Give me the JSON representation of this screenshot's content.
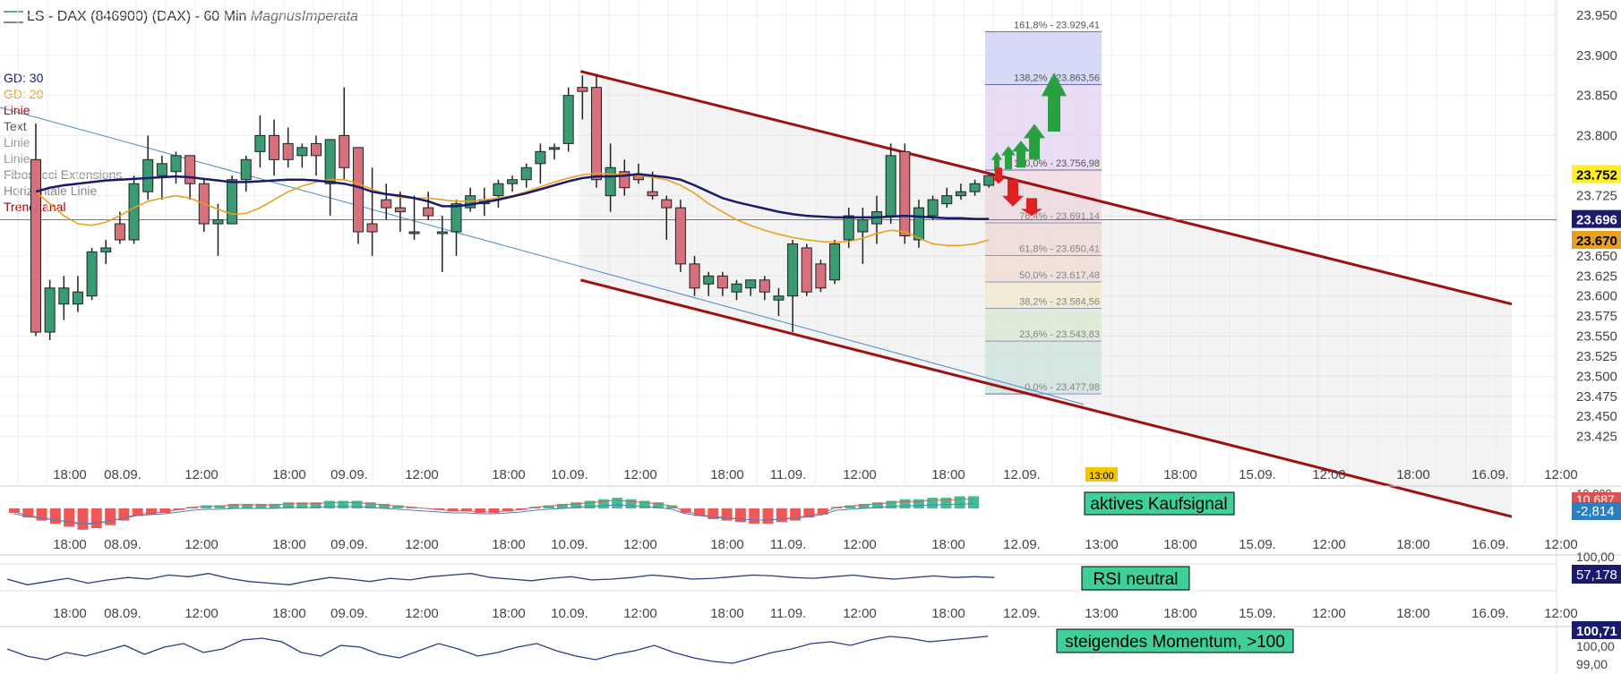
{
  "header": {
    "title": "LS - DAX (846900) (DAX) - 60 Min",
    "brand": "MagnusImperata"
  },
  "legend": [
    {
      "label": "GD: 30",
      "color": "#1a1a6e"
    },
    {
      "label": "GD: 20",
      "color": "#e8a020"
    },
    {
      "label": "Linie",
      "color": "#b00000"
    },
    {
      "label": "Text",
      "color": "#555555"
    },
    {
      "label": "Linie",
      "color": "#999999"
    },
    {
      "label": "Linie",
      "color": "#999999"
    },
    {
      "label": "Fibonacci Extensions",
      "color": "#888888"
    },
    {
      "label": "Horizontale Linie",
      "color": "#888888"
    },
    {
      "label": "Trendkanal",
      "color": "#b00000"
    }
  ],
  "chart_data": [
    {
      "type": "candlestick",
      "title": "LS - DAX (846900) (DAX) - 60 Min",
      "y_range": [
        23400,
        23960
      ],
      "y_ticks": [
        "23.950",
        "23.900",
        "23.850",
        "23.800",
        "23.750",
        "23.725",
        "23.700",
        "23.650",
        "23.625",
        "23.600",
        "23.575",
        "23.550",
        "23.525",
        "23.500",
        "23.475",
        "23.450",
        "23.425"
      ],
      "x_ticks": [
        "18:00",
        "08.09.",
        "12:00",
        "18:00",
        "09.09.",
        "12:00",
        "18:00",
        "10.09.",
        "12:00",
        "18:00",
        "11.09.",
        "12:00",
        "18:00",
        "12.09.",
        "13:00",
        "18:00",
        "15.09.",
        "12:00",
        "18:00",
        "16.09.",
        "12:00"
      ],
      "candles": [
        {
          "o": 23770,
          "h": 23815,
          "l": 23550,
          "c": 23555
        },
        {
          "o": 23555,
          "h": 23620,
          "l": 23545,
          "c": 23610
        },
        {
          "o": 23590,
          "h": 23625,
          "l": 23570,
          "c": 23610
        },
        {
          "o": 23590,
          "h": 23625,
          "l": 23580,
          "c": 23605
        },
        {
          "o": 23600,
          "h": 23660,
          "l": 23595,
          "c": 23655
        },
        {
          "o": 23655,
          "h": 23670,
          "l": 23640,
          "c": 23660
        },
        {
          "o": 23690,
          "h": 23705,
          "l": 23665,
          "c": 23670
        },
        {
          "o": 23670,
          "h": 23750,
          "l": 23665,
          "c": 23740
        },
        {
          "o": 23730,
          "h": 23800,
          "l": 23720,
          "c": 23770
        },
        {
          "o": 23750,
          "h": 23775,
          "l": 23720,
          "c": 23765
        },
        {
          "o": 23755,
          "h": 23780,
          "l": 23740,
          "c": 23775
        },
        {
          "o": 23775,
          "h": 23775,
          "l": 23720,
          "c": 23740
        },
        {
          "o": 23740,
          "h": 23745,
          "l": 23680,
          "c": 23690
        },
        {
          "o": 23690,
          "h": 23715,
          "l": 23650,
          "c": 23695
        },
        {
          "o": 23690,
          "h": 23750,
          "l": 23690,
          "c": 23745
        },
        {
          "o": 23745,
          "h": 23775,
          "l": 23730,
          "c": 23770
        },
        {
          "o": 23780,
          "h": 23825,
          "l": 23760,
          "c": 23800
        },
        {
          "o": 23800,
          "h": 23820,
          "l": 23750,
          "c": 23770
        },
        {
          "o": 23790,
          "h": 23810,
          "l": 23760,
          "c": 23770
        },
        {
          "o": 23775,
          "h": 23790,
          "l": 23760,
          "c": 23785
        },
        {
          "o": 23790,
          "h": 23800,
          "l": 23750,
          "c": 23775
        },
        {
          "o": 23740,
          "h": 23795,
          "l": 23700,
          "c": 23795
        },
        {
          "o": 23800,
          "h": 23860,
          "l": 23745,
          "c": 23760
        },
        {
          "o": 23785,
          "h": 23785,
          "l": 23665,
          "c": 23680
        },
        {
          "o": 23690,
          "h": 23760,
          "l": 23650,
          "c": 23680
        },
        {
          "o": 23720,
          "h": 23740,
          "l": 23695,
          "c": 23710
        },
        {
          "o": 23710,
          "h": 23730,
          "l": 23680,
          "c": 23705
        },
        {
          "o": 23680,
          "h": 23725,
          "l": 23670,
          "c": 23680
        },
        {
          "o": 23710,
          "h": 23730,
          "l": 23695,
          "c": 23700
        },
        {
          "o": 23680,
          "h": 23700,
          "l": 23630,
          "c": 23680
        },
        {
          "o": 23680,
          "h": 23720,
          "l": 23650,
          "c": 23715
        },
        {
          "o": 23710,
          "h": 23735,
          "l": 23705,
          "c": 23725
        },
        {
          "o": 23715,
          "h": 23735,
          "l": 23700,
          "c": 23720
        },
        {
          "o": 23725,
          "h": 23745,
          "l": 23710,
          "c": 23740
        },
        {
          "o": 23740,
          "h": 23750,
          "l": 23730,
          "c": 23745
        },
        {
          "o": 23745,
          "h": 23765,
          "l": 23735,
          "c": 23760
        },
        {
          "o": 23765,
          "h": 23790,
          "l": 23740,
          "c": 23780
        },
        {
          "o": 23785,
          "h": 23790,
          "l": 23770,
          "c": 23785
        },
        {
          "o": 23790,
          "h": 23860,
          "l": 23780,
          "c": 23850
        },
        {
          "o": 23860,
          "h": 23875,
          "l": 23820,
          "c": 23855
        },
        {
          "o": 23860,
          "h": 23875,
          "l": 23735,
          "c": 23745
        },
        {
          "o": 23725,
          "h": 23790,
          "l": 23705,
          "c": 23760
        },
        {
          "o": 23755,
          "h": 23770,
          "l": 23725,
          "c": 23735
        },
        {
          "o": 23750,
          "h": 23765,
          "l": 23740,
          "c": 23745
        },
        {
          "o": 23730,
          "h": 23755,
          "l": 23720,
          "c": 23725
        },
        {
          "o": 23720,
          "h": 23725,
          "l": 23670,
          "c": 23710
        },
        {
          "o": 23710,
          "h": 23720,
          "l": 23630,
          "c": 23640
        },
        {
          "o": 23640,
          "h": 23650,
          "l": 23600,
          "c": 23610
        },
        {
          "o": 23615,
          "h": 23630,
          "l": 23600,
          "c": 23625
        },
        {
          "o": 23625,
          "h": 23630,
          "l": 23600,
          "c": 23610
        },
        {
          "o": 23605,
          "h": 23620,
          "l": 23595,
          "c": 23615
        },
        {
          "o": 23610,
          "h": 23620,
          "l": 23600,
          "c": 23620
        },
        {
          "o": 23620,
          "h": 23625,
          "l": 23595,
          "c": 23605
        },
        {
          "o": 23595,
          "h": 23610,
          "l": 23575,
          "c": 23600
        },
        {
          "o": 23600,
          "h": 23670,
          "l": 23555,
          "c": 23665
        },
        {
          "o": 23660,
          "h": 23665,
          "l": 23600,
          "c": 23605
        },
        {
          "o": 23640,
          "h": 23645,
          "l": 23605,
          "c": 23610
        },
        {
          "o": 23620,
          "h": 23670,
          "l": 23615,
          "c": 23665
        },
        {
          "o": 23670,
          "h": 23710,
          "l": 23660,
          "c": 23700
        },
        {
          "o": 23680,
          "h": 23710,
          "l": 23640,
          "c": 23695
        },
        {
          "o": 23690,
          "h": 23725,
          "l": 23665,
          "c": 23705
        },
        {
          "o": 23700,
          "h": 23790,
          "l": 23690,
          "c": 23775
        },
        {
          "o": 23780,
          "h": 23790,
          "l": 23665,
          "c": 23675
        },
        {
          "o": 23670,
          "h": 23720,
          "l": 23660,
          "c": 23710
        },
        {
          "o": 23700,
          "h": 23725,
          "l": 23695,
          "c": 23720
        },
        {
          "o": 23715,
          "h": 23735,
          "l": 23710,
          "c": 23725
        },
        {
          "o": 23725,
          "h": 23740,
          "l": 23720,
          "c": 23730
        },
        {
          "o": 23730,
          "h": 23745,
          "l": 23725,
          "c": 23740
        },
        {
          "o": 23738,
          "h": 23752,
          "l": 23735,
          "c": 23750
        }
      ],
      "gd30": [
        23730,
        23735,
        23738,
        23740,
        23742,
        23744,
        23745,
        23746,
        23747,
        23748,
        23749,
        23748,
        23746,
        23744,
        23742,
        23742,
        23743,
        23744,
        23745,
        23745,
        23744,
        23742,
        23740,
        23736,
        23730,
        23727,
        23725,
        23722,
        23718,
        23712,
        23712,
        23714,
        23717,
        23720,
        23724,
        23728,
        23733,
        23738,
        23743,
        23747,
        23749,
        23749,
        23750,
        23752,
        23750,
        23748,
        23745,
        23738,
        23730,
        23722,
        23717,
        23713,
        23709,
        23705,
        23702,
        23700,
        23699,
        23698,
        23698,
        23698,
        23698,
        23699,
        23700,
        23699,
        23698,
        23697,
        23697,
        23696,
        23696
      ],
      "gd20": [
        23730,
        23715,
        23700,
        23690,
        23688,
        23692,
        23700,
        23710,
        23718,
        23722,
        23725,
        23722,
        23715,
        23708,
        23702,
        23703,
        23710,
        23720,
        23730,
        23737,
        23742,
        23745,
        23745,
        23740,
        23733,
        23727,
        23723,
        23722,
        23722,
        23720,
        23718,
        23718,
        23720,
        23722,
        23725,
        23730,
        23736,
        23742,
        23747,
        23751,
        23753,
        23752,
        23751,
        23750,
        23748,
        23745,
        23738,
        23728,
        23715,
        23705,
        23695,
        23688,
        23682,
        23677,
        23673,
        23670,
        23668,
        23667,
        23668,
        23672,
        23678,
        23682,
        23680,
        23672,
        23665,
        23663,
        23663,
        23665,
        23670
      ],
      "fibonacci_extensions": [
        {
          "label": "161,8% - 23.929,41",
          "value": 23929.41,
          "color": "#c9cdf4"
        },
        {
          "label": "138,2% - 23.863,56",
          "value": 23863.56,
          "color": "#e0d2f0"
        },
        {
          "label": "100,0% - 23.756,98",
          "value": 23756.98,
          "color": "#f2d4de"
        },
        {
          "label": "76,4% - 23.691,14",
          "value": 23691.14,
          "color": "#f6d6d2"
        },
        {
          "label": "61,8% - 23.650,41",
          "value": 23650.41,
          "color": "#f9dccc"
        },
        {
          "label": "50,0% - 23.617,48",
          "value": 23617.48,
          "color": "#faf0c4"
        },
        {
          "label": "38,2% - 23.584,56",
          "value": 23584.56,
          "color": "#d8ecc8"
        },
        {
          "label": "23,6% - 23.543,83",
          "value": 23543.83,
          "color": "#c4e4dc"
        },
        {
          "label": "0,0% - 23.477,98",
          "value": 23477.98,
          "color": "#c8e6f4"
        }
      ],
      "trend_channel": {
        "upper_start": 23880,
        "upper_end": 23590,
        "lower_start": 23620,
        "lower_end": 23325
      },
      "horizontal_line": 23695,
      "price_badges": [
        {
          "label": "23.752",
          "value": 23752,
          "color": "#ffee22",
          "text_color": "#000000"
        },
        {
          "label": "23.696",
          "value": 23696,
          "color": "#1a1a6e",
          "text_color": "#ffffff"
        },
        {
          "label": "23.670",
          "value": 23670,
          "color": "#e8a020",
          "text_color": "#000000"
        }
      ],
      "time_badge": "13:00"
    },
    {
      "type": "bar",
      "title": "",
      "annotation": "aktives Kaufsignal",
      "axis_label": "10.000",
      "badges": [
        {
          "label": "10,687",
          "color": "#e05050"
        },
        {
          "label": "-2,814",
          "color": "#2a7fc0"
        }
      ],
      "values": [
        -3,
        -6,
        -8,
        -10,
        -12,
        -14,
        -13,
        -11,
        -8,
        -5,
        -4,
        -3,
        -1,
        1,
        2,
        2,
        3,
        3,
        3,
        3,
        4,
        4,
        4,
        5,
        5,
        5,
        4,
        3,
        2,
        1,
        0,
        -1,
        -2,
        -2,
        -3,
        -3,
        -2,
        -1,
        1,
        2,
        3,
        4,
        5,
        6,
        7,
        6,
        5,
        4,
        2,
        -3,
        -5,
        -7,
        -8,
        -9,
        -10,
        -10,
        -9,
        -8,
        -6,
        -4,
        1,
        2,
        3,
        4,
        5,
        6,
        6,
        7,
        7,
        8,
        8
      ]
    },
    {
      "type": "line",
      "title": "",
      "annotation": "RSI neutral",
      "axis_label": "100,00",
      "badges": [
        {
          "label": "57,178",
          "color": "#1a1a6e"
        }
      ],
      "values": [
        55,
        48,
        52,
        56,
        50,
        54,
        57,
        55,
        60,
        58,
        62,
        56,
        52,
        50,
        48,
        53,
        57,
        55,
        52,
        56,
        54,
        58,
        60,
        62,
        57,
        55,
        53,
        56,
        58,
        54,
        55,
        57,
        60,
        58,
        55,
        56,
        58,
        60,
        59,
        57,
        56,
        58,
        60,
        57,
        55,
        57,
        59,
        57,
        58,
        57
      ]
    },
    {
      "type": "line",
      "title": "",
      "annotation": "steigendes Momentum, >100",
      "axis_label": "99,00",
      "badges": [
        {
          "label": "100,71",
          "color": "#1a1a6e"
        },
        {
          "label": "100,00",
          "color": "#ffffff"
        }
      ],
      "values": [
        100.0,
        99.6,
        99.4,
        99.8,
        99.6,
        99.9,
        100.2,
        99.7,
        100.1,
        100.3,
        99.8,
        100.0,
        100.5,
        100.6,
        100.4,
        99.8,
        99.6,
        100.2,
        100.1,
        99.7,
        99.5,
        99.9,
        100.3,
        100.0,
        99.6,
        99.8,
        100.1,
        100.3,
        99.9,
        99.6,
        99.4,
        99.7,
        99.9,
        100.2,
        99.8,
        99.5,
        99.3,
        99.2,
        99.5,
        99.8,
        100.0,
        100.3,
        100.4,
        100.2,
        100.5,
        100.7,
        100.6,
        100.4,
        100.5,
        100.6,
        100.71
      ]
    }
  ]
}
